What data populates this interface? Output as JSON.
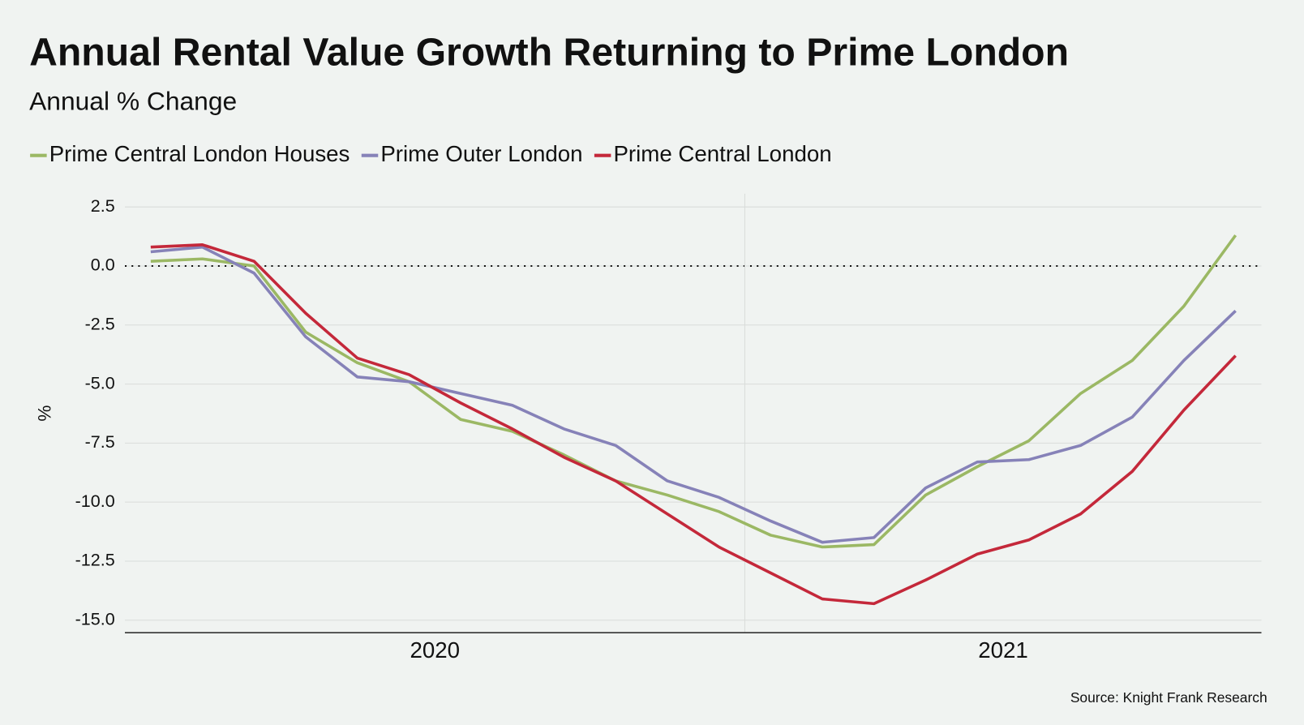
{
  "chart_data": {
    "type": "line",
    "title": "Annual Rental Value Growth Returning to Prime London",
    "subtitle": "Annual % Change",
    "y_label": "%",
    "source": "Source: Knight Frank Research",
    "categories": [
      "2020",
      "2020",
      "2020",
      "2020",
      "2020",
      "2020",
      "2020",
      "2020",
      "2020",
      "2020",
      "2020",
      "2020",
      "2021",
      "2021",
      "2021",
      "2021",
      "2021",
      "2021",
      "2021",
      "2021",
      "2021",
      "2021"
    ],
    "series": [
      {
        "name": "Prime Central London Houses",
        "color": "#9bb864",
        "values": [
          0.2,
          0.3,
          0.0,
          -2.8,
          -4.1,
          -4.9,
          -6.5,
          -7.0,
          -8.0,
          -9.1,
          -9.7,
          -10.4,
          -11.4,
          -11.9,
          -11.8,
          -9.7,
          -8.5,
          -7.4,
          -5.4,
          -4.0,
          -1.7,
          1.3
        ]
      },
      {
        "name": "Prime Outer London",
        "color": "#8682b8",
        "values": [
          0.6,
          0.8,
          -0.3,
          -3.0,
          -4.7,
          -4.9,
          -5.4,
          -5.9,
          -6.9,
          -7.6,
          -9.1,
          -9.8,
          -10.8,
          -11.7,
          -11.5,
          -9.4,
          -8.3,
          -8.2,
          -7.6,
          -6.4,
          -4.0,
          -1.9
        ]
      },
      {
        "name": "Prime Central London",
        "color": "#c4283a",
        "values": [
          0.8,
          0.9,
          0.2,
          -2.0,
          -3.9,
          -4.6,
          -5.8,
          -6.9,
          -8.1,
          -9.1,
          -10.5,
          -11.9,
          -13.0,
          -14.1,
          -14.3,
          -13.3,
          -12.2,
          -11.6,
          -10.5,
          -8.7,
          -6.1,
          -3.8
        ]
      }
    ],
    "ylim": [
      -15.53,
      3.06
    ],
    "yticks": [
      2.5,
      {
        "value": 0,
        "label": "0.0"
      },
      -2.5,
      {
        "value": -5,
        "label": "-5.0"
      },
      -7.5,
      {
        "value": -10,
        "label": "-10.0"
      },
      -12.5,
      {
        "value": -15,
        "label": "-15.0"
      }
    ],
    "grid": true,
    "zero_line": "dotted",
    "legend": "top-left"
  }
}
